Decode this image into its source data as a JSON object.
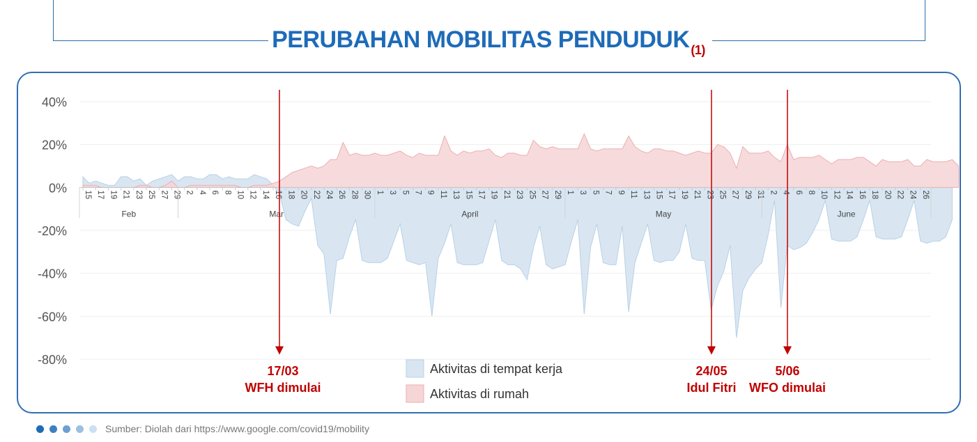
{
  "title": "PERUBAHAN MOBILITAS PENDUDUK",
  "title_sup": "(1)",
  "source": "Sumber: Diolah dari https://www.google.com/covid19/mobility",
  "footer_dot_colors": [
    "#1e6bb8",
    "#3d80c2",
    "#6d9fd2",
    "#9dbfe2",
    "#cddff1"
  ],
  "chart_data": {
    "type": "area",
    "ylim": [
      -80,
      40
    ],
    "yticks": [
      40,
      20,
      0,
      -20,
      -40,
      -60,
      -80
    ],
    "ytick_labels": [
      "40%",
      "20%",
      "0%",
      "-20%",
      "-40%",
      "-60%",
      "-80%"
    ],
    "date_start": "2020-02-15",
    "date_end": "2020-06-27",
    "day_tick_labels": [
      "15",
      "17",
      "19",
      "21",
      "23",
      "25",
      "27",
      "29",
      "2",
      "4",
      "6",
      "8",
      "10",
      "12",
      "14",
      "16",
      "18",
      "20",
      "22",
      "24",
      "26",
      "28",
      "30",
      "1",
      "3",
      "5",
      "7",
      "9",
      "11",
      "13",
      "15",
      "17",
      "19",
      "21",
      "23",
      "25",
      "27",
      "29",
      "1",
      "3",
      "5",
      "7",
      "9",
      "11",
      "13",
      "15",
      "17",
      "19",
      "21",
      "23",
      "25",
      "27",
      "29",
      "31",
      "2",
      "4",
      "6",
      "8",
      "10",
      "12",
      "14",
      "16",
      "18",
      "20",
      "22",
      "24",
      "26"
    ],
    "months": [
      "Feb",
      "Mar",
      "April",
      "May",
      "June"
    ],
    "series": [
      {
        "name": "Aktivitas di tempat kerja",
        "color": "#d9e6f2",
        "values": [
          5,
          2,
          3,
          2,
          1,
          1,
          5,
          5,
          3,
          4,
          1,
          3,
          4,
          5,
          6,
          3,
          5,
          5,
          4,
          4,
          6,
          6,
          4,
          5,
          4,
          4,
          4,
          6,
          5,
          4,
          1,
          -3,
          -15,
          -17,
          -18,
          -11,
          -5,
          -27,
          -31,
          -59,
          -34,
          -33,
          -23,
          -15,
          -34,
          -35,
          -35,
          -35,
          -33,
          -25,
          -17,
          -34,
          -35,
          -36,
          -35,
          -60,
          -33,
          -26,
          -17,
          -35,
          -36,
          -36,
          -36,
          -35,
          -25,
          -15,
          -34,
          -36,
          -36,
          -38,
          -43,
          -28,
          -18,
          -36,
          -38,
          -37,
          -36,
          -25,
          -15,
          -59,
          -28,
          -17,
          -35,
          -36,
          -36,
          -18,
          -58,
          -35,
          -26,
          -17,
          -34,
          -35,
          -34,
          -34,
          -30,
          -17,
          -33,
          -34,
          -34,
          -57,
          -46,
          -39,
          -27,
          -70,
          -48,
          -42,
          -38,
          -35,
          -22,
          -6,
          -56,
          -27,
          -29,
          -28,
          -26,
          -21,
          -15,
          -6,
          -24,
          -25,
          -25,
          -25,
          -23,
          -15,
          -6,
          -23,
          -24,
          -24,
          -24,
          -23,
          -15,
          -6,
          -25,
          -26,
          -25,
          -25,
          -23,
          -15
        ]
      },
      {
        "name": "Aktivitas di rumah",
        "color": "#f6d5d6",
        "values": [
          1,
          1,
          1,
          0,
          0,
          0,
          0,
          0,
          0,
          1,
          1,
          0,
          0,
          1,
          3,
          0,
          0,
          1,
          1,
          1,
          1,
          1,
          1,
          1,
          1,
          0,
          0,
          1,
          1,
          1,
          2,
          3,
          5,
          7,
          8,
          9,
          10,
          9,
          10,
          13,
          13,
          21,
          15,
          16,
          15,
          15,
          16,
          15,
          15,
          16,
          17,
          15,
          14,
          16,
          15,
          15,
          15,
          24,
          17,
          15,
          17,
          16,
          17,
          17,
          18,
          15,
          14,
          16,
          16,
          15,
          15,
          22,
          19,
          18,
          19,
          18,
          18,
          18,
          18,
          25,
          18,
          17,
          18,
          18,
          18,
          18,
          24,
          19,
          17,
          16,
          18,
          18,
          17,
          17,
          16,
          15,
          16,
          17,
          16,
          16,
          20,
          19,
          16,
          9,
          19,
          16,
          16,
          16,
          17,
          14,
          12,
          20,
          13,
          14,
          14,
          14,
          15,
          13,
          11,
          13,
          13,
          13,
          14,
          14,
          12,
          10,
          13,
          12,
          12,
          12,
          13,
          10,
          10,
          13,
          12,
          12,
          12,
          13,
          10
        ]
      }
    ],
    "annotations": [
      {
        "date": "17/03",
        "label": "WFH dimulai"
      },
      {
        "date": "24/05",
        "label": "Idul Fitri"
      },
      {
        "date": "5/06",
        "label": "WFO dimulai"
      }
    ],
    "annotation_color": "#c00000"
  }
}
